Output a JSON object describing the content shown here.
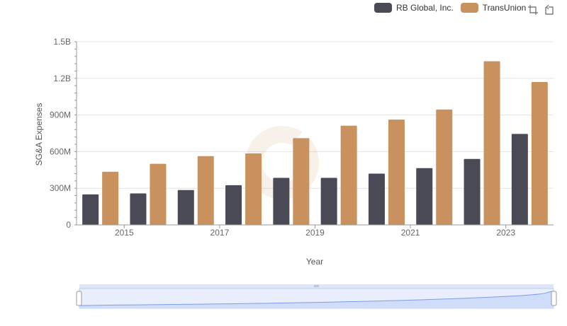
{
  "chart_data": {
    "type": "bar",
    "title": "",
    "xlabel": "Year",
    "ylabel": "SG&A Expenses",
    "categories": [
      "2014",
      "2015",
      "2016",
      "2017",
      "2018",
      "2019",
      "2020",
      "2021",
      "2022",
      "2023"
    ],
    "x_tick_labels": [
      "2015",
      "2017",
      "2019",
      "2021",
      "2023"
    ],
    "y_tick_labels": [
      "0",
      "300M",
      "600M",
      "900M",
      "1.2B",
      "1.5B"
    ],
    "y_ticks": [
      0,
      300000000,
      600000000,
      900000000,
      1200000000,
      1500000000
    ],
    "ylim": [
      0,
      1500000000
    ],
    "series": [
      {
        "name": "RB Global, Inc.",
        "color": "#4a4a57",
        "values": [
          250000000,
          258000000,
          285000000,
          325000000,
          385000000,
          385000000,
          420000000,
          465000000,
          540000000,
          745000000
        ]
      },
      {
        "name": "TransUnion",
        "color": "#c8915d",
        "values": [
          435000000,
          500000000,
          563000000,
          585000000,
          710000000,
          812000000,
          862000000,
          945000000,
          1340000000,
          1170000000
        ]
      }
    ],
    "legend_position": "top-right",
    "grid": true
  },
  "icons": {
    "zoom": "zoom-icon",
    "reset": "reset-icon"
  }
}
